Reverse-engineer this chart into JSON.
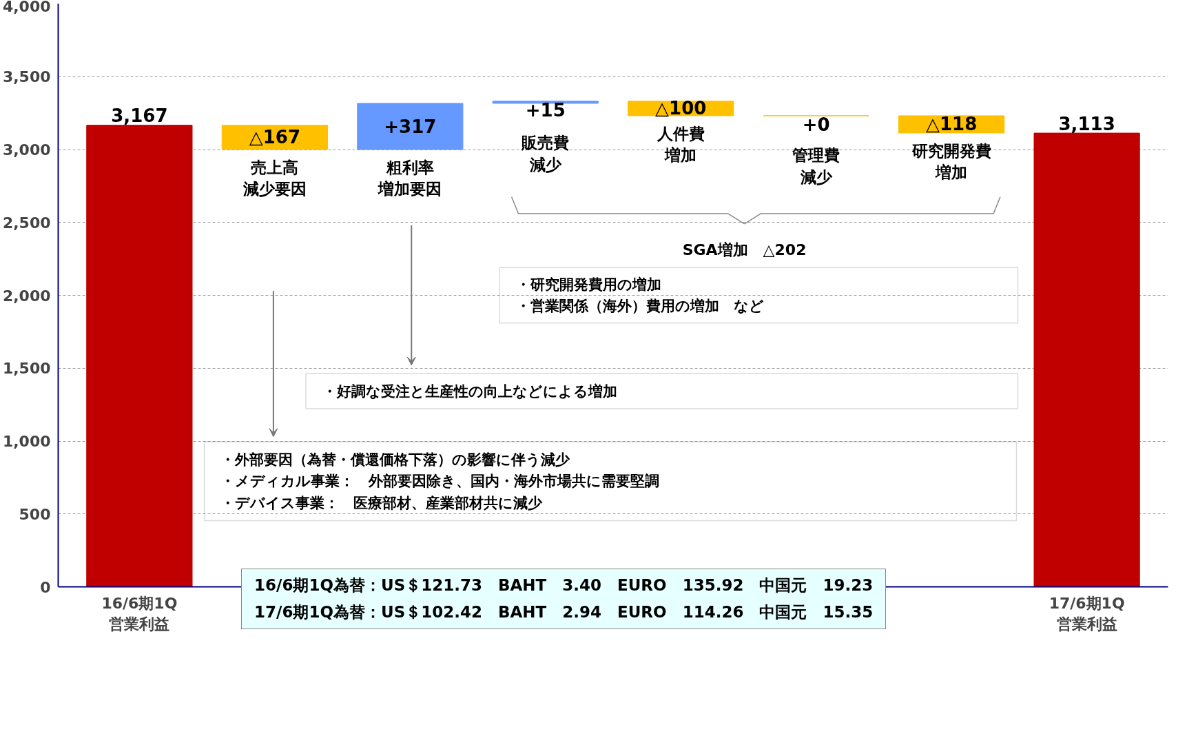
{
  "chart_data": {
    "type": "bar",
    "categories": [
      "16/6期1Q\n営業利益",
      "売上高減少要因",
      "粗利率増加要因",
      "販売費減少",
      "人件費増加",
      "管理費減少",
      "研究開発費増加",
      "17/6期1Q\n営業利益"
    ],
    "values": [
      3167,
      -167,
      317,
      15,
      -100,
      0,
      -118,
      3113
    ],
    "base": [
      0,
      3167,
      3000,
      3317,
      3332,
      3232,
      3232,
      0
    ],
    "colors": [
      "#c00000",
      "#ffc000",
      "#6699ff",
      "#6699ff",
      "#ffc000",
      "#ffc000",
      "#ffc000",
      "#c00000"
    ],
    "value_labels": [
      "3,167",
      "△167",
      "+317",
      "+15",
      "△100",
      "+0",
      "△118",
      "3,113"
    ],
    "ylim": [
      0,
      4000
    ],
    "yticks": [
      0,
      {
        "value": 500,
        "label": "500"
      },
      {
        "value": 1000,
        "label": "1,000"
      },
      {
        "value": 1500,
        "label": "1,500"
      },
      {
        "value": 2000,
        "label": "2,000"
      },
      {
        "value": 2500,
        "label": "2,500"
      },
      {
        "value": 3000,
        "label": "3,000"
      },
      {
        "value": 3500,
        "label": "3,500"
      },
      {
        "value": 4000,
        "label": "4,000"
      }
    ],
    "grid": "y",
    "annotations": [
      "SGA増加　△202",
      "・研究開発費用の増加",
      "・営業関係（海外）費用の増加　など",
      "・好調な受注と生産性の向上などによる増加",
      "・外部要因（為替・償還価格下落）の影響に伴う減少",
      "・メディカル事業：　外部要因除き、国内・海外市場共に需要堅調",
      "・デバイス事業：　医療部材、産業部材共に減少",
      "16/6期1Q為替：US＄121.73　BAHT　3.40　EURO　135.92　中国元　19.23",
      "17/6期1Q為替：US＄102.42　BAHT　2.94　EURO　114.26　中国元　15.35"
    ]
  }
}
